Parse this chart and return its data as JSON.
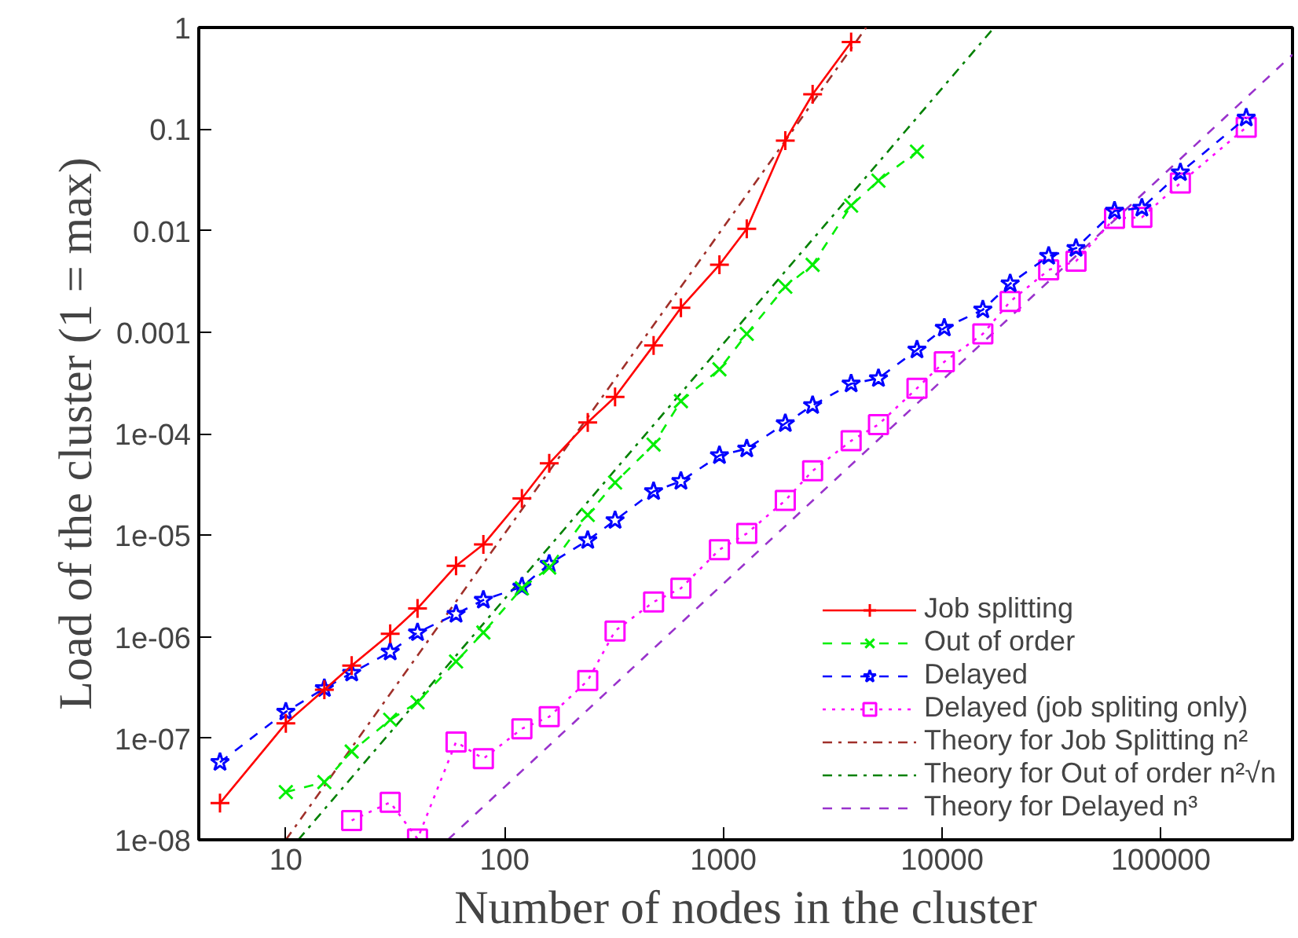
{
  "chart_data": {
    "type": "line",
    "xlabel": "Number of nodes in the cluster",
    "ylabel": "Load of the cluster (1 = max)",
    "log": "xy",
    "grid": false,
    "legend": "bottom right",
    "xlim": [
      4,
      400000
    ],
    "ylim": [
      1e-08,
      1
    ],
    "xticks": [
      10,
      100,
      1000,
      10000,
      100000
    ],
    "yticks": [
      {
        "value": 1e-08,
        "label": "1e-08"
      },
      {
        "value": 1e-07,
        "label": "1e-07"
      },
      {
        "value": 1e-06,
        "label": "1e-06"
      },
      {
        "value": 1e-05,
        "label": "1e-05"
      },
      {
        "value": 0.0001,
        "label": "1e-04"
      },
      0.001,
      0.01,
      0.1,
      1
    ],
    "series": [
      {
        "name": "Job splitting",
        "color": "#ff0000",
        "marker": "cross",
        "line_style": "solid",
        "x": [
          5,
          10,
          15,
          20,
          30,
          40,
          60,
          80,
          120,
          160,
          240,
          320,
          480,
          640,
          960,
          1280,
          1920,
          2560,
          3840
        ],
        "values": [
          2.3e-08,
          1.4e-07,
          3e-07,
          5.2e-07,
          1.07e-06,
          1.9e-06,
          5e-06,
          8.1e-06,
          2.3e-05,
          5.1e-05,
          0.000129,
          0.00023,
          0.00074,
          0.00174,
          0.0046,
          0.0104,
          0.077,
          0.22,
          0.72
        ]
      },
      {
        "name": "Out of order",
        "color": "#00ee00",
        "marker": "x",
        "line_style": "dashed",
        "x": [
          10,
          15,
          20,
          30,
          40,
          60,
          80,
          120,
          160,
          240,
          320,
          480,
          640,
          960,
          1280,
          1920,
          2560,
          3840,
          5120,
          7680
        ],
        "values": [
          2.95e-08,
          3.7e-08,
          7.4e-08,
          1.52e-07,
          2.26e-07,
          5.7e-07,
          1.1e-06,
          3e-06,
          4.8e-06,
          1.58e-05,
          3.3e-05,
          7.8e-05,
          0.000209,
          0.00043,
          0.00096,
          0.0028,
          0.0046,
          0.0176,
          0.031,
          0.06
        ]
      },
      {
        "name": "Delayed",
        "color": "#0000ff",
        "marker": "star",
        "line_style": "dashed",
        "x": [
          5,
          10,
          15,
          20,
          30,
          40,
          60,
          80,
          120,
          160,
          240,
          320,
          480,
          640,
          960,
          1280,
          1920,
          2560,
          3840,
          5120,
          7680,
          10240,
          15360,
          20480,
          30720,
          40960,
          61440,
          81920,
          122880,
          245760
        ],
        "values": [
          5.8e-08,
          1.82e-07,
          3.1e-07,
          4.4e-07,
          7.1e-07,
          1.1e-06,
          1.67e-06,
          2.3e-06,
          3.1e-06,
          5.2e-06,
          8.9e-06,
          1.4e-05,
          2.7e-05,
          3.4e-05,
          6.1e-05,
          7.1e-05,
          0.000126,
          0.00019,
          0.00031,
          0.00035,
          0.00067,
          0.0011,
          0.00166,
          0.003,
          0.0056,
          0.0067,
          0.0156,
          0.0167,
          0.0373,
          0.129
        ]
      },
      {
        "name": "Delayed (job spliting only)",
        "color": "#ff00ff",
        "marker": "square",
        "line_style": "dotted",
        "x": [
          20,
          30,
          40,
          60,
          80,
          120,
          160,
          240,
          320,
          480,
          640,
          960,
          1280,
          1920,
          2560,
          3840,
          5120,
          7680,
          10240,
          15360,
          20480,
          30720,
          40960,
          61440,
          81920,
          122880,
          245760
        ],
        "values": [
          1.55e-08,
          2.34e-08,
          1.02e-08,
          9.2e-08,
          6.3e-08,
          1.24e-07,
          1.63e-07,
          3.7e-07,
          1.14e-06,
          2.2e-06,
          3e-06,
          7.2e-06,
          1.04e-05,
          2.2e-05,
          4.3e-05,
          8.5e-05,
          0.000123,
          0.00028,
          0.00051,
          0.00096,
          0.002,
          0.0041,
          0.005,
          0.0132,
          0.0135,
          0.0294,
          0.104
        ]
      },
      {
        "name": "Theory for Job Splitting n²",
        "color": "#a0302a",
        "marker": "none",
        "line_style": "dashdot",
        "x": [
          10,
          4500
        ],
        "values": [
          1e-08,
          1
        ]
      },
      {
        "name": "Theory for Out of order n²√n",
        "color": "#008000",
        "marker": "none",
        "line_style": "dashdot",
        "x": [
          11.4,
          17300
        ],
        "values": [
          1e-08,
          1
        ]
      },
      {
        "name": "Theory for Delayed n³",
        "color": "#9932cc",
        "marker": "none",
        "line_style": "dashed",
        "x": [
          55,
          400000
        ],
        "values": [
          1e-08,
          0.54
        ]
      }
    ]
  }
}
